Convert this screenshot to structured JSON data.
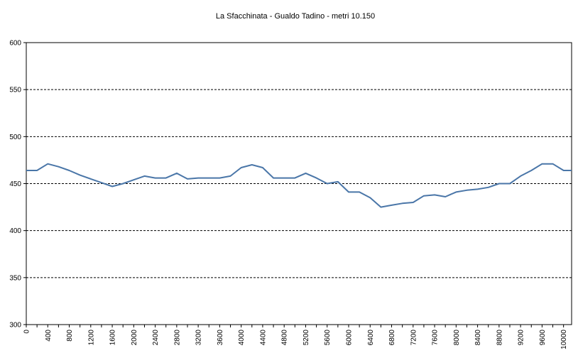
{
  "chart_data": {
    "type": "line",
    "title": "La Sfacchinata - Gualdo Tadino - metri 10.150",
    "xlabel": "",
    "ylabel": "",
    "ylim": [
      300,
      600
    ],
    "yticks": [
      300,
      350,
      400,
      450,
      500,
      550,
      600
    ],
    "xlim": [
      0,
      10150
    ],
    "xticks": [
      0,
      400,
      800,
      1200,
      1600,
      2000,
      2400,
      2800,
      3200,
      3600,
      4000,
      4400,
      4800,
      5200,
      5600,
      6000,
      6400,
      6800,
      7200,
      7600,
      8000,
      8400,
      8800,
      9200,
      9600,
      10000
    ],
    "grid": true,
    "legend": "none",
    "color": "#4a76a8",
    "series": [
      {
        "x": [
          0,
          200,
          400,
          600,
          800,
          1000,
          1200,
          1400,
          1600,
          1800,
          2000,
          2200,
          2400,
          2600,
          2800,
          3000,
          3200,
          3400,
          3600,
          3800,
          4000,
          4200,
          4400,
          4600,
          4800,
          5000,
          5200,
          5400,
          5600,
          5800,
          6000,
          6200,
          6400,
          6600,
          6800,
          7000,
          7200,
          7400,
          7600,
          7800,
          8000,
          8200,
          8400,
          8600,
          8800,
          9000,
          9200,
          9400,
          9600,
          9800,
          10000,
          10150
        ],
        "values": [
          464,
          464,
          471,
          468,
          464,
          459,
          455,
          451,
          447,
          450,
          454,
          458,
          456,
          456,
          461,
          455,
          456,
          456,
          456,
          458,
          467,
          470,
          467,
          456,
          456,
          456,
          461,
          456,
          450,
          452,
          441,
          441,
          435,
          425,
          427,
          429,
          430,
          437,
          438,
          436,
          441,
          443,
          444,
          446,
          450,
          450,
          458,
          464,
          471,
          471,
          464,
          464
        ]
      }
    ]
  }
}
